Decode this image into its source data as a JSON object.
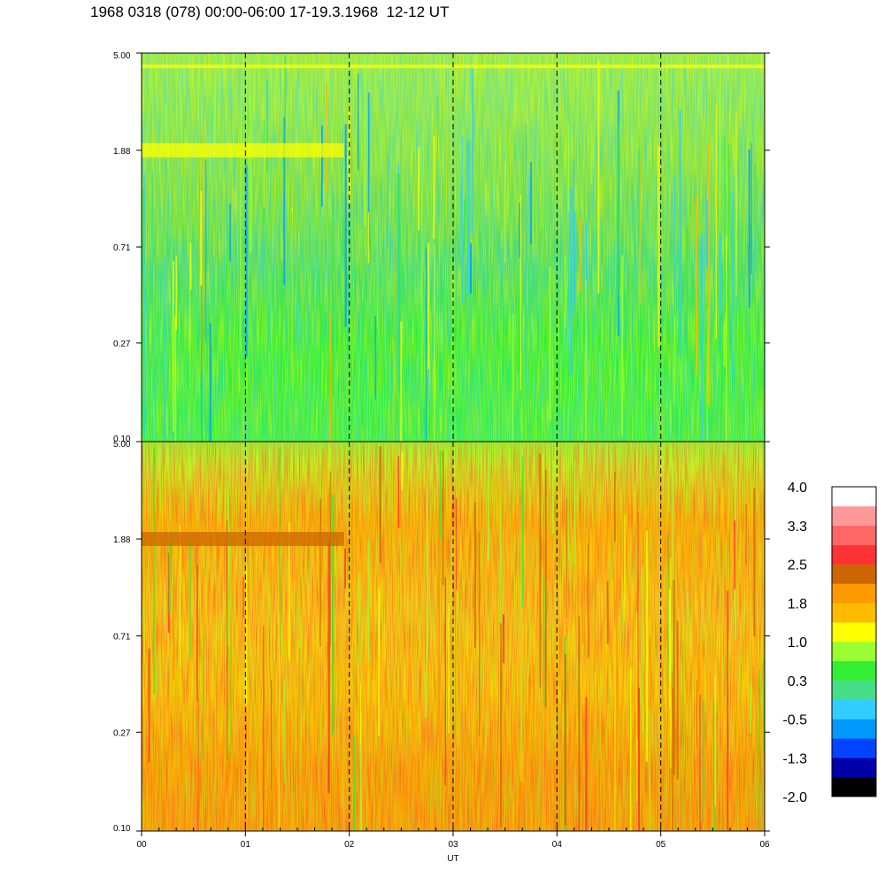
{
  "title": "1968 0318 (078) 00:00-06:00 17-19.3.1968  12-12 UT",
  "chart_data": [
    {
      "type": "heatmap",
      "panel": "upper",
      "y_scale": "log",
      "ylim": [
        0.1,
        5.0
      ],
      "y_ticks": [
        "5.00",
        "1.88",
        "0.71",
        "0.27",
        "0.10"
      ],
      "y_tick_values": [
        5.0,
        1.88,
        0.71,
        0.27,
        0.1
      ],
      "xlim": [
        0,
        6
      ],
      "dashed_hours": [
        1,
        2,
        3,
        4,
        5
      ],
      "dominant_levels": {
        "bottom": 0.3,
        "middle": 0.3,
        "top": 0.6,
        "band_1_88": 1.0,
        "band_5_00": 1.0
      }
    },
    {
      "type": "heatmap",
      "panel": "lower",
      "y_scale": "log",
      "ylim": [
        0.1,
        5.0
      ],
      "y_ticks": [
        "5.00",
        "1.88",
        "0.71",
        "0.27",
        "0.10"
      ],
      "y_tick_values": [
        5.0,
        1.88,
        0.71,
        0.27,
        0.1
      ],
      "xlim": [
        0,
        6
      ],
      "xlabel": "UT",
      "x_ticks": [
        "00",
        "01",
        "02",
        "03",
        "04",
        "05",
        "06"
      ],
      "x_tick_values": [
        0,
        1,
        2,
        3,
        4,
        5,
        6
      ],
      "dashed_hours": [
        1,
        2,
        3,
        4,
        5
      ],
      "dominant_levels": {
        "bottom": 1.8,
        "middle": 1.6,
        "top": 0.8,
        "band_1_88": 2.5
      }
    }
  ],
  "colorbar": {
    "labels": [
      "4.0",
      "3.3",
      "2.5",
      "1.8",
      "1.0",
      "0.3",
      "-0.5",
      "-1.3",
      "-2.0"
    ],
    "colors": [
      "#000000",
      "#0000aa",
      "#0044ff",
      "#0099ff",
      "#33ccff",
      "#44dd88",
      "#33ee33",
      "#99ff33",
      "#ffff00",
      "#ffbb00",
      "#ff9900",
      "#cc6600",
      "#ff3333",
      "#ff6666",
      "#ff9999",
      "#ffffff"
    ]
  }
}
